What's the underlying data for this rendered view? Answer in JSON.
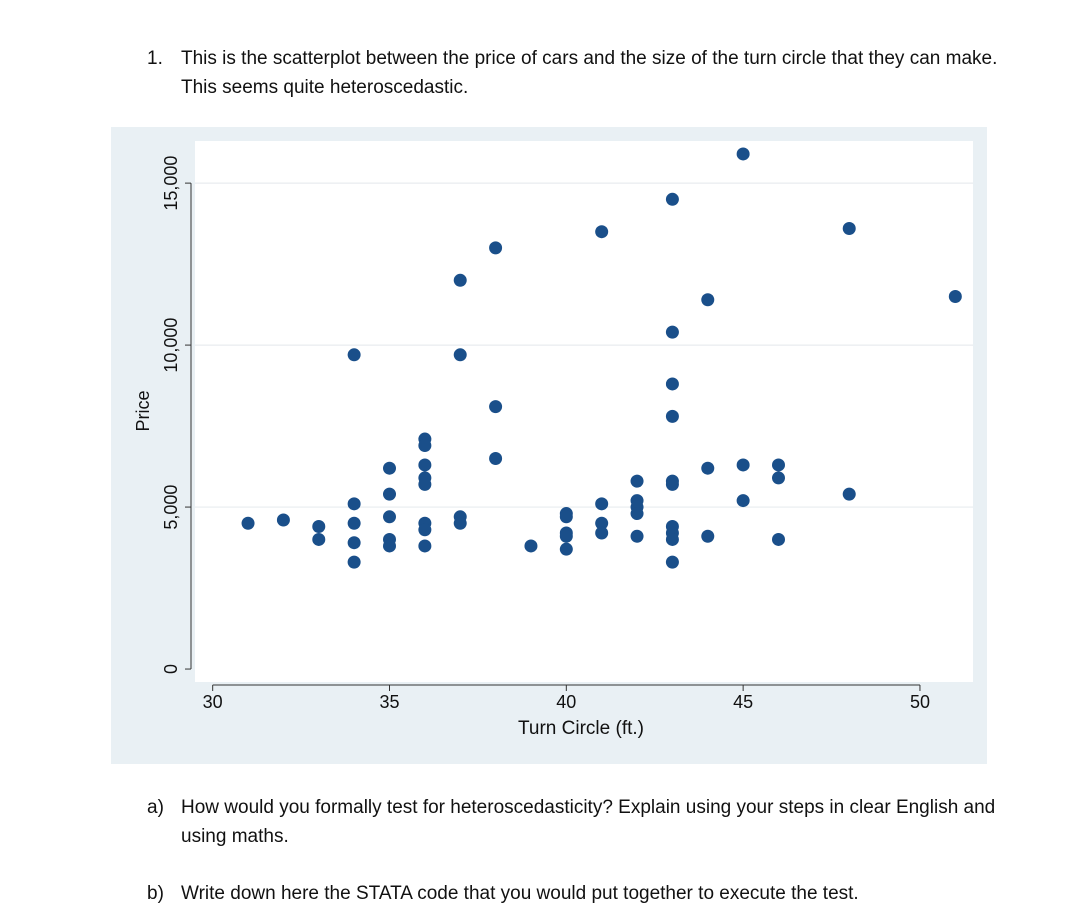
{
  "question_1": {
    "number": "1.",
    "text": "This is the scatterplot between the price of cars and the size of the turn circle that they can make. This seems quite heteroscedastic."
  },
  "question_a": {
    "number": "a)",
    "text": "How would you formally test for heteroscedasticity? Explain using your steps in clear English and using maths."
  },
  "question_b": {
    "number": "b)",
    "text": "Write down here the STATA code that you would put together to execute the test."
  },
  "chart_data": {
    "type": "scatter",
    "title": "",
    "xlabel": "Turn Circle (ft.)",
    "ylabel": "Price",
    "xlim": [
      29.5,
      51.5
    ],
    "ylim": [
      -400,
      16300
    ],
    "xticks": [
      30,
      35,
      40,
      45,
      50
    ],
    "xtick_labels": [
      "30",
      "35",
      "40",
      "45",
      "50"
    ],
    "yticks": [
      0,
      5000,
      10000,
      15000
    ],
    "ytick_labels": [
      "0",
      "5,000",
      "10,000",
      "15,000"
    ],
    "grid": true,
    "legend": "none",
    "colors": {
      "marker": "#1a4f8a",
      "plot_background": "#ffffff",
      "outer_background": "#e9f0f4",
      "grid": "#e8ecef",
      "axis": "#333333"
    },
    "points": [
      {
        "x": 31,
        "y": 4500
      },
      {
        "x": 32,
        "y": 4600
      },
      {
        "x": 33,
        "y": 4400
      },
      {
        "x": 33,
        "y": 4000
      },
      {
        "x": 34,
        "y": 9700
      },
      {
        "x": 34,
        "y": 5100
      },
      {
        "x": 34,
        "y": 4500
      },
      {
        "x": 34,
        "y": 3900
      },
      {
        "x": 34,
        "y": 3300
      },
      {
        "x": 35,
        "y": 6200
      },
      {
        "x": 35,
        "y": 5400
      },
      {
        "x": 35,
        "y": 4700
      },
      {
        "x": 35,
        "y": 4000
      },
      {
        "x": 35,
        "y": 3800
      },
      {
        "x": 36,
        "y": 7100
      },
      {
        "x": 36,
        "y": 6900
      },
      {
        "x": 36,
        "y": 6300
      },
      {
        "x": 36,
        "y": 5900
      },
      {
        "x": 36,
        "y": 5700
      },
      {
        "x": 36,
        "y": 4500
      },
      {
        "x": 36,
        "y": 4300
      },
      {
        "x": 36,
        "y": 3800
      },
      {
        "x": 37,
        "y": 12000
      },
      {
        "x": 37,
        "y": 9700
      },
      {
        "x": 37,
        "y": 4700
      },
      {
        "x": 37,
        "y": 4500
      },
      {
        "x": 38,
        "y": 13000
      },
      {
        "x": 38,
        "y": 8100
      },
      {
        "x": 38,
        "y": 6500
      },
      {
        "x": 39,
        "y": 3800
      },
      {
        "x": 40,
        "y": 4800
      },
      {
        "x": 40,
        "y": 4700
      },
      {
        "x": 40,
        "y": 4200
      },
      {
        "x": 40,
        "y": 4100
      },
      {
        "x": 40,
        "y": 3700
      },
      {
        "x": 41,
        "y": 13500
      },
      {
        "x": 41,
        "y": 5100
      },
      {
        "x": 41,
        "y": 4500
      },
      {
        "x": 41,
        "y": 4200
      },
      {
        "x": 42,
        "y": 5800
      },
      {
        "x": 42,
        "y": 5200
      },
      {
        "x": 42,
        "y": 5000
      },
      {
        "x": 42,
        "y": 4800
      },
      {
        "x": 42,
        "y": 4100
      },
      {
        "x": 43,
        "y": 14500
      },
      {
        "x": 43,
        "y": 10400
      },
      {
        "x": 43,
        "y": 8800
      },
      {
        "x": 43,
        "y": 7800
      },
      {
        "x": 43,
        "y": 5800
      },
      {
        "x": 43,
        "y": 5700
      },
      {
        "x": 43,
        "y": 4400
      },
      {
        "x": 43,
        "y": 4200
      },
      {
        "x": 43,
        "y": 4000
      },
      {
        "x": 43,
        "y": 3300
      },
      {
        "x": 44,
        "y": 11400
      },
      {
        "x": 44,
        "y": 6200
      },
      {
        "x": 44,
        "y": 4100
      },
      {
        "x": 45,
        "y": 15900
      },
      {
        "x": 45,
        "y": 6300
      },
      {
        "x": 45,
        "y": 5200
      },
      {
        "x": 46,
        "y": 6300
      },
      {
        "x": 46,
        "y": 5900
      },
      {
        "x": 46,
        "y": 4000
      },
      {
        "x": 48,
        "y": 13600
      },
      {
        "x": 48,
        "y": 5400
      },
      {
        "x": 51,
        "y": 11500
      }
    ]
  }
}
